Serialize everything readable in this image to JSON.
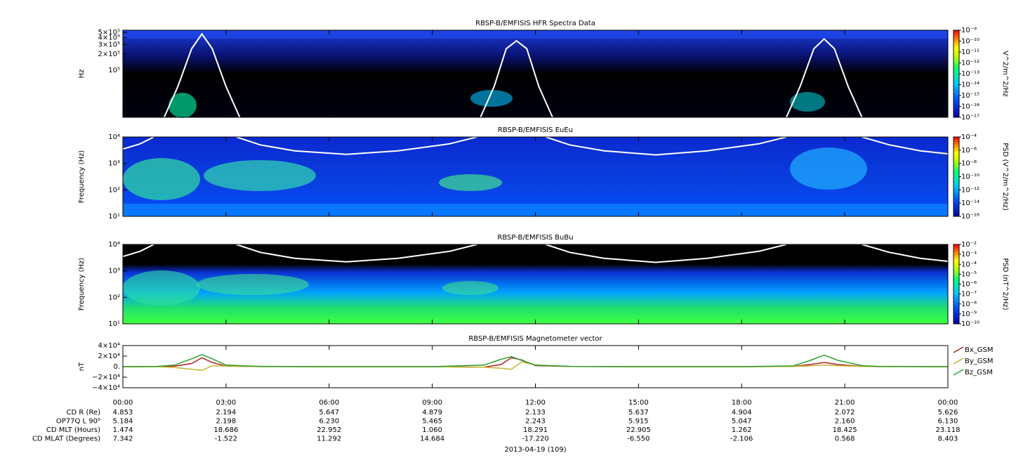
{
  "chart_data": [
    {
      "type": "spectrogram",
      "title": "RBSP-B/EMFISIS  HFR Spectra Data",
      "ylabel": "Hz",
      "log_y": true,
      "xlim": [
        0,
        24
      ],
      "ylim": [
        13500,
        550000
      ],
      "yticks": [
        {
          "value": 500000,
          "label": "5×10⁵"
        },
        {
          "value": 400000,
          "label": "4×10⁵"
        },
        {
          "value": 300000,
          "label": "3×10⁵"
        },
        {
          "value": 200000,
          "label": "2×10⁵"
        },
        {
          "value": 100000,
          "label": "10⁵"
        }
      ],
      "colorbar": {
        "label": "V^2/m^2/Hz",
        "lim": [
          1e-17,
          1e-09
        ],
        "ticks": [
          {
            "value": 1e-09,
            "label": "10⁻⁹"
          },
          {
            "value": 1e-10,
            "label": "10⁻¹⁰"
          },
          {
            "value": 1e-11,
            "label": "10⁻¹¹"
          },
          {
            "value": 1e-12,
            "label": "10⁻¹²"
          },
          {
            "value": 1e-13,
            "label": "10⁻¹³"
          },
          {
            "value": 1e-14,
            "label": "10⁻¹⁴"
          },
          {
            "value": 1e-15,
            "label": "10⁻¹⁵"
          },
          {
            "value": 1e-16,
            "label": "10⁻¹⁶"
          },
          {
            "value": 1e-17,
            "label": "10⁻¹⁷"
          }
        ]
      },
      "overlay": {
        "color": "#ffffff",
        "x": [
          1.2,
          1.6,
          2.0,
          2.3,
          2.6,
          3.0,
          3.4,
          7,
          10.4,
          10.8,
          11.15,
          11.45,
          11.75,
          12.1,
          12.5,
          16,
          19.3,
          19.7,
          20.1,
          20.4,
          20.7,
          21.1,
          21.5
        ],
        "values": [
          13500,
          50000,
          250000,
          470000,
          250000,
          50000,
          13500,
          null,
          13500,
          50000,
          250000,
          350000,
          250000,
          50000,
          13500,
          null,
          13500,
          50000,
          250000,
          380000,
          250000,
          50000,
          13500
        ]
      }
    },
    {
      "type": "spectrogram",
      "title": "RBSP-B/EMFISIS  EuEu",
      "ylabel": "Frequency (Hz)",
      "log_y": true,
      "xlim": [
        0,
        24
      ],
      "ylim": [
        10,
        10000
      ],
      "yticks": [
        {
          "value": 10,
          "label": "10¹"
        },
        {
          "value": 100,
          "label": "10²"
        },
        {
          "value": 1000,
          "label": "10³"
        },
        {
          "value": 10000,
          "label": "10⁴"
        }
      ],
      "colorbar": {
        "label": "PSD (V^2/m^2/Hz)",
        "lim": [
          1e-16,
          0.0001
        ],
        "ticks": [
          {
            "value": 0.0001,
            "label": "10⁻⁴"
          },
          {
            "value": 1e-06,
            "label": "10⁻⁶"
          },
          {
            "value": 1e-08,
            "label": "10⁻⁸"
          },
          {
            "value": 1e-10,
            "label": "10⁻¹⁰"
          },
          {
            "value": 1e-12,
            "label": "10⁻¹²"
          },
          {
            "value": 1e-14,
            "label": "10⁻¹⁴"
          },
          {
            "value": 1e-16,
            "label": "10⁻¹⁶"
          }
        ]
      },
      "overlay": {
        "color": "#ffffff",
        "x": [
          0,
          0.5,
          0.9,
          2,
          3.3,
          4,
          5,
          6.5,
          8,
          9.5,
          10.3,
          11.2,
          12.3,
          13,
          14,
          15.5,
          17,
          18.5,
          19.3,
          20.4,
          21.5,
          22.3,
          23.2,
          24
        ],
        "values": [
          3500,
          5500,
          10000,
          null,
          10000,
          5000,
          3000,
          2200,
          3000,
          5500,
          10000,
          null,
          10000,
          5000,
          3000,
          2100,
          3000,
          5500,
          10000,
          null,
          10000,
          5000,
          3000,
          2300
        ]
      }
    },
    {
      "type": "spectrogram",
      "title": "RBSP-B/EMFISIS  BuBu",
      "ylabel": "Frequency (Hz)",
      "log_y": true,
      "xlim": [
        0,
        24
      ],
      "ylim": [
        10,
        10000
      ],
      "yticks": [
        {
          "value": 10,
          "label": "10¹"
        },
        {
          "value": 100,
          "label": "10²"
        },
        {
          "value": 1000,
          "label": "10³"
        },
        {
          "value": 10000,
          "label": "10⁴"
        }
      ],
      "colorbar": {
        "label": "PSD (nT^2/Hz)",
        "lim": [
          1e-10,
          0.01
        ],
        "ticks": [
          {
            "value": 0.01,
            "label": "10⁻²"
          },
          {
            "value": 0.001,
            "label": "10⁻³"
          },
          {
            "value": 0.0001,
            "label": "10⁻⁴"
          },
          {
            "value": 1e-05,
            "label": "10⁻⁵"
          },
          {
            "value": 1e-06,
            "label": "10⁻⁶"
          },
          {
            "value": 1e-07,
            "label": "10⁻⁷"
          },
          {
            "value": 1e-08,
            "label": "10⁻⁸"
          },
          {
            "value": 1e-09,
            "label": "10⁻⁹"
          },
          {
            "value": 1e-10,
            "label": "10⁻¹⁰"
          }
        ]
      },
      "overlay": {
        "color": "#ffffff",
        "x": [
          0,
          0.5,
          0.9,
          2,
          3.3,
          4,
          5,
          6.5,
          8,
          9.5,
          10.3,
          11.2,
          12.3,
          13,
          14,
          15.5,
          17,
          18.5,
          19.3,
          20.4,
          21.5,
          22.3,
          23.2,
          24
        ],
        "values": [
          3500,
          5500,
          10000,
          null,
          10000,
          5000,
          3000,
          2200,
          3000,
          5500,
          10000,
          null,
          10000,
          5000,
          3000,
          2100,
          3000,
          5500,
          10000,
          null,
          10000,
          5000,
          3000,
          2300
        ]
      }
    },
    {
      "type": "line",
      "title": "RBSP-B/EMFISIS  Magnetometer vector",
      "ylabel": "nT",
      "xlim": [
        0,
        24
      ],
      "ylim": [
        -40000,
        40000
      ],
      "yticks": [
        {
          "value": 40000,
          "label": "4×10⁴"
        },
        {
          "value": 20000,
          "label": "2×10⁴"
        },
        {
          "value": 0,
          "label": "0."
        },
        {
          "value": -20000,
          "label": "−2×10⁴"
        },
        {
          "value": -40000,
          "label": "−4×10⁴"
        }
      ],
      "xticks": [
        {
          "value": 0,
          "label": "00:00"
        },
        {
          "value": 3,
          "label": "03:00"
        },
        {
          "value": 6,
          "label": "06:00"
        },
        {
          "value": 9,
          "label": "09:00"
        },
        {
          "value": 12,
          "label": "12:00"
        },
        {
          "value": 15,
          "label": "15:00"
        },
        {
          "value": 18,
          "label": "18:00"
        },
        {
          "value": 21,
          "label": "21:00"
        },
        {
          "value": 24,
          "label": "00:00"
        }
      ],
      "x": [
        0,
        1,
        1.5,
        2,
        2.3,
        2.6,
        3,
        4,
        6,
        9,
        10.5,
        11,
        11.3,
        11.6,
        12,
        13,
        15,
        18,
        19.5,
        20,
        20.4,
        20.8,
        21.5,
        22,
        24
      ],
      "series": [
        {
          "name": "Bx_GSM",
          "color": "#b22222",
          "values": [
            0,
            200,
            1000,
            6000,
            17000,
            8000,
            1000,
            200,
            0,
            0,
            -1000,
            4000,
            17000,
            13000,
            2000,
            300,
            0,
            0,
            500,
            4000,
            8000,
            4000,
            500,
            100,
            0
          ]
        },
        {
          "name": "By_GSM",
          "color": "#c8b432",
          "values": [
            0,
            -200,
            -1500,
            -5000,
            -7000,
            2000,
            1000,
            200,
            0,
            0,
            -1000,
            -3000,
            -5000,
            9000,
            3000,
            500,
            0,
            0,
            300,
            1500,
            3000,
            2000,
            300,
            100,
            0
          ]
        },
        {
          "name": "Bz_GSM",
          "color": "#2ca02c",
          "values": [
            0,
            500,
            3000,
            15000,
            23000,
            15000,
            3000,
            500,
            0,
            0,
            3000,
            14000,
            19000,
            12000,
            3000,
            500,
            0,
            0,
            1500,
            12000,
            22000,
            12000,
            2000,
            500,
            0
          ]
        }
      ]
    }
  ],
  "ephemeris": {
    "rows": [
      {
        "label": "CD R (Re)",
        "values": [
          "4.853",
          "2.194",
          "5.647",
          "4.879",
          "2.133",
          "5.637",
          "4.904",
          "2.072",
          "5.626"
        ]
      },
      {
        "label": "OP77Q L 90⁰",
        "values": [
          "5.184",
          "2.198",
          "6.230",
          "5.465",
          "2.243",
          "5.915",
          "5.047",
          "2.160",
          "6.130"
        ]
      },
      {
        "label": "CD MLT (Hours)",
        "values": [
          "1.474",
          "18.686",
          "22.952",
          "1.060",
          "18.291",
          "22.905",
          "1.262",
          "18.425",
          "23.118"
        ]
      },
      {
        "label": "CD MLAT (Degrees)",
        "values": [
          "7.342",
          "-1.522",
          "11.292",
          "14.684",
          "-17.220",
          "-6.550",
          "-2.106",
          "0.568",
          "8.403"
        ]
      }
    ],
    "date": "2013-04-19 (109)"
  }
}
